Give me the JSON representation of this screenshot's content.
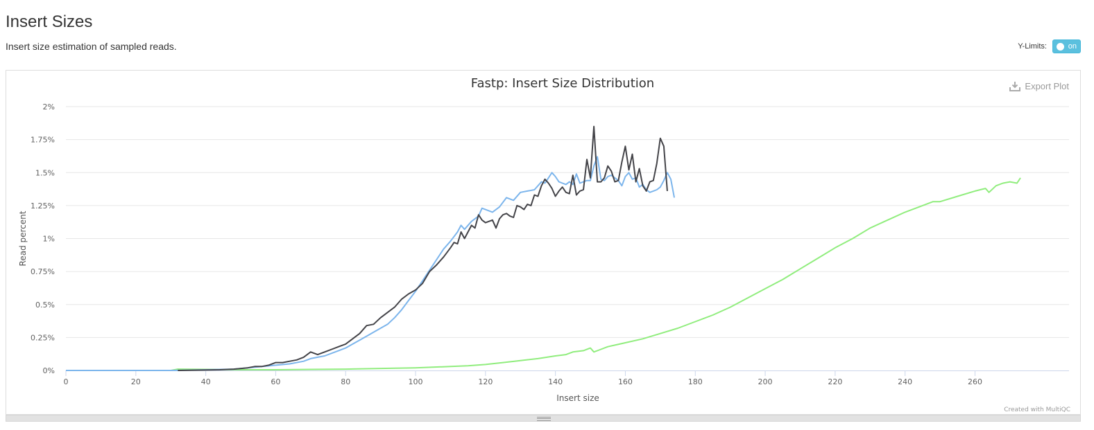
{
  "section": {
    "title": "Insert Sizes",
    "description": "Insert size estimation of sampled reads."
  },
  "ylimits": {
    "label": "Y-Limits:",
    "state": "on"
  },
  "export": {
    "label": "Export Plot",
    "icon": "download-icon"
  },
  "credit": "Created with MultiQC",
  "chart_data": {
    "type": "line",
    "title": "Fastp: Insert Size Distribution",
    "xlabel": "Insert size",
    "ylabel": "Read percent",
    "xlim": [
      0,
      273
    ],
    "ylim": [
      0,
      2
    ],
    "xticks": [
      "0",
      "20",
      "40",
      "60",
      "80",
      "100",
      "120",
      "140",
      "160",
      "180",
      "200",
      "220",
      "240",
      "260"
    ],
    "yticks": [
      "0%",
      "0.25%",
      "0.5%",
      "0.75%",
      "1%",
      "1.25%",
      "1.5%",
      "1.75%",
      "2%"
    ],
    "grid": true,
    "legend": "none",
    "series": [
      {
        "color": "#7cb5ec",
        "points": [
          [
            0,
            0
          ],
          [
            30,
            0
          ],
          [
            40,
            0.005
          ],
          [
            48,
            0.01
          ],
          [
            52,
            0.02
          ],
          [
            56,
            0.03
          ],
          [
            60,
            0.04
          ],
          [
            64,
            0.05
          ],
          [
            68,
            0.07
          ],
          [
            70,
            0.09
          ],
          [
            72,
            0.1
          ],
          [
            74,
            0.11
          ],
          [
            76,
            0.13
          ],
          [
            78,
            0.15
          ],
          [
            80,
            0.17
          ],
          [
            82,
            0.2
          ],
          [
            84,
            0.23
          ],
          [
            86,
            0.26
          ],
          [
            88,
            0.29
          ],
          [
            90,
            0.32
          ],
          [
            92,
            0.35
          ],
          [
            94,
            0.4
          ],
          [
            96,
            0.46
          ],
          [
            98,
            0.53
          ],
          [
            100,
            0.6
          ],
          [
            102,
            0.68
          ],
          [
            104,
            0.76
          ],
          [
            106,
            0.84
          ],
          [
            108,
            0.92
          ],
          [
            110,
            0.98
          ],
          [
            112,
            1.05
          ],
          [
            113,
            1.1
          ],
          [
            114,
            1.07
          ],
          [
            116,
            1.13
          ],
          [
            118,
            1.17
          ],
          [
            119,
            1.23
          ],
          [
            120,
            1.22
          ],
          [
            122,
            1.2
          ],
          [
            124,
            1.24
          ],
          [
            126,
            1.31
          ],
          [
            128,
            1.29
          ],
          [
            130,
            1.35
          ],
          [
            132,
            1.36
          ],
          [
            134,
            1.37
          ],
          [
            136,
            1.43
          ],
          [
            137,
            1.42
          ],
          [
            138,
            1.46
          ],
          [
            139,
            1.5
          ],
          [
            140,
            1.47
          ],
          [
            141,
            1.43
          ],
          [
            142,
            1.42
          ],
          [
            143,
            1.41
          ],
          [
            144,
            1.43
          ],
          [
            145,
            1.41
          ],
          [
            146,
            1.49
          ],
          [
            147,
            1.42
          ],
          [
            148,
            1.43
          ],
          [
            149,
            1.44
          ],
          [
            150,
            1.44
          ],
          [
            151,
            1.55
          ],
          [
            152,
            1.62
          ],
          [
            153,
            1.45
          ],
          [
            154,
            1.44
          ],
          [
            155,
            1.47
          ],
          [
            156,
            1.48
          ],
          [
            157,
            1.46
          ],
          [
            158,
            1.44
          ],
          [
            159,
            1.4
          ],
          [
            160,
            1.47
          ],
          [
            161,
            1.5
          ],
          [
            162,
            1.45
          ],
          [
            163,
            1.46
          ],
          [
            164,
            1.39
          ],
          [
            165,
            1.41
          ],
          [
            166,
            1.37
          ],
          [
            167,
            1.35
          ],
          [
            168,
            1.36
          ],
          [
            169,
            1.37
          ],
          [
            170,
            1.39
          ],
          [
            171,
            1.44
          ],
          [
            172,
            1.5
          ],
          [
            173,
            1.45
          ],
          [
            174,
            1.31
          ]
        ]
      },
      {
        "color": "#434348",
        "points": [
          [
            32,
            0
          ],
          [
            44,
            0.005
          ],
          [
            48,
            0.01
          ],
          [
            52,
            0.02
          ],
          [
            54,
            0.03
          ],
          [
            56,
            0.03
          ],
          [
            58,
            0.04
          ],
          [
            60,
            0.06
          ],
          [
            62,
            0.06
          ],
          [
            64,
            0.07
          ],
          [
            66,
            0.08
          ],
          [
            68,
            0.1
          ],
          [
            70,
            0.14
          ],
          [
            72,
            0.12
          ],
          [
            74,
            0.14
          ],
          [
            76,
            0.16
          ],
          [
            78,
            0.18
          ],
          [
            80,
            0.2
          ],
          [
            82,
            0.24
          ],
          [
            84,
            0.28
          ],
          [
            86,
            0.34
          ],
          [
            88,
            0.35
          ],
          [
            90,
            0.4
          ],
          [
            92,
            0.44
          ],
          [
            94,
            0.48
          ],
          [
            96,
            0.54
          ],
          [
            98,
            0.58
          ],
          [
            100,
            0.61
          ],
          [
            102,
            0.66
          ],
          [
            104,
            0.75
          ],
          [
            106,
            0.8
          ],
          [
            108,
            0.86
          ],
          [
            110,
            0.93
          ],
          [
            111,
            0.97
          ],
          [
            112,
            0.96
          ],
          [
            113,
            1.05
          ],
          [
            114,
            1.0
          ],
          [
            116,
            1.1
          ],
          [
            117,
            1.08
          ],
          [
            118,
            1.18
          ],
          [
            119,
            1.14
          ],
          [
            120,
            1.12
          ],
          [
            121,
            1.13
          ],
          [
            122,
            1.14
          ],
          [
            123,
            1.08
          ],
          [
            124,
            1.15
          ],
          [
            125,
            1.18
          ],
          [
            126,
            1.19
          ],
          [
            127,
            1.17
          ],
          [
            128,
            1.16
          ],
          [
            129,
            1.25
          ],
          [
            130,
            1.24
          ],
          [
            131,
            1.22
          ],
          [
            132,
            1.26
          ],
          [
            133,
            1.25
          ],
          [
            134,
            1.33
          ],
          [
            135,
            1.32
          ],
          [
            136,
            1.4
          ],
          [
            137,
            1.45
          ],
          [
            138,
            1.42
          ],
          [
            139,
            1.38
          ],
          [
            140,
            1.32
          ],
          [
            141,
            1.36
          ],
          [
            142,
            1.39
          ],
          [
            143,
            1.35
          ],
          [
            144,
            1.34
          ],
          [
            145,
            1.48
          ],
          [
            146,
            1.33
          ],
          [
            147,
            1.36
          ],
          [
            148,
            1.37
          ],
          [
            149,
            1.6
          ],
          [
            150,
            1.46
          ],
          [
            151,
            1.85
          ],
          [
            152,
            1.43
          ],
          [
            153,
            1.43
          ],
          [
            154,
            1.46
          ],
          [
            155,
            1.55
          ],
          [
            156,
            1.51
          ],
          [
            157,
            1.43
          ],
          [
            158,
            1.44
          ],
          [
            159,
            1.58
          ],
          [
            160,
            1.7
          ],
          [
            161,
            1.52
          ],
          [
            162,
            1.64
          ],
          [
            163,
            1.43
          ],
          [
            164,
            1.53
          ],
          [
            165,
            1.4
          ],
          [
            166,
            1.36
          ],
          [
            167,
            1.43
          ],
          [
            168,
            1.44
          ],
          [
            169,
            1.57
          ],
          [
            170,
            1.76
          ],
          [
            171,
            1.7
          ],
          [
            172,
            1.36
          ]
        ]
      },
      {
        "color": "#90ed7d",
        "points": [
          [
            0,
            0
          ],
          [
            30,
            0
          ],
          [
            32,
            0.01
          ],
          [
            50,
            0.005
          ],
          [
            60,
            0.005
          ],
          [
            70,
            0.008
          ],
          [
            80,
            0.01
          ],
          [
            90,
            0.015
          ],
          [
            100,
            0.02
          ],
          [
            110,
            0.03
          ],
          [
            115,
            0.035
          ],
          [
            120,
            0.045
          ],
          [
            125,
            0.06
          ],
          [
            130,
            0.075
          ],
          [
            135,
            0.09
          ],
          [
            140,
            0.11
          ],
          [
            143,
            0.12
          ],
          [
            145,
            0.14
          ],
          [
            148,
            0.15
          ],
          [
            150,
            0.17
          ],
          [
            151,
            0.14
          ],
          [
            153,
            0.16
          ],
          [
            155,
            0.18
          ],
          [
            160,
            0.21
          ],
          [
            165,
            0.24
          ],
          [
            170,
            0.28
          ],
          [
            175,
            0.32
          ],
          [
            180,
            0.37
          ],
          [
            185,
            0.42
          ],
          [
            190,
            0.48
          ],
          [
            195,
            0.55
          ],
          [
            200,
            0.62
          ],
          [
            205,
            0.69
          ],
          [
            210,
            0.77
          ],
          [
            215,
            0.85
          ],
          [
            220,
            0.93
          ],
          [
            225,
            1.0
          ],
          [
            230,
            1.08
          ],
          [
            235,
            1.14
          ],
          [
            240,
            1.2
          ],
          [
            245,
            1.25
          ],
          [
            248,
            1.28
          ],
          [
            250,
            1.28
          ],
          [
            255,
            1.32
          ],
          [
            260,
            1.36
          ],
          [
            263,
            1.38
          ],
          [
            264,
            1.35
          ],
          [
            266,
            1.4
          ],
          [
            268,
            1.42
          ],
          [
            270,
            1.43
          ],
          [
            272,
            1.42
          ],
          [
            273,
            1.46
          ]
        ]
      }
    ]
  }
}
